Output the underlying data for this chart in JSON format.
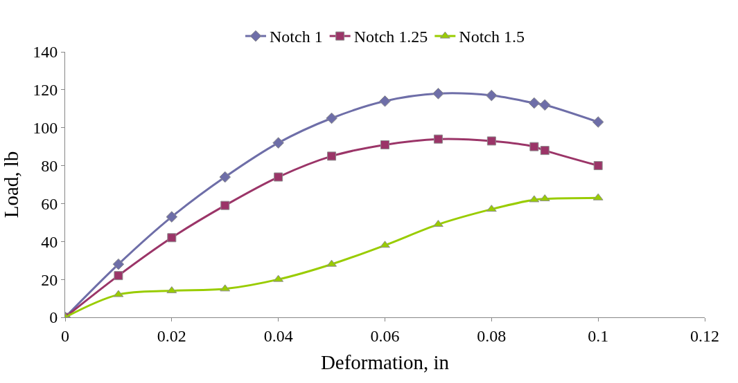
{
  "chart_data": {
    "type": "line",
    "xlabel": "Deformation, in",
    "ylabel": "Load, lb",
    "x": [
      0,
      0.01,
      0.02,
      0.03,
      0.04,
      0.05,
      0.06,
      0.07,
      0.08,
      0.088,
      0.09,
      0.1
    ],
    "series": [
      {
        "name": "Notch 1",
        "color": "#6e6ea8",
        "marker": "diamond",
        "values": [
          0,
          28,
          53,
          74,
          92,
          105,
          114,
          118,
          117,
          113,
          112,
          103
        ]
      },
      {
        "name": "Notch 1.25",
        "color": "#9b3568",
        "marker": "square",
        "values": [
          0,
          22,
          42,
          59,
          74,
          85,
          91,
          94,
          93,
          90,
          88,
          80
        ]
      },
      {
        "name": "Notch 1.5",
        "color": "#99cc00",
        "marker": "triangle",
        "values": [
          0,
          12,
          14,
          15,
          20,
          28,
          38,
          49,
          57,
          62,
          62.5,
          63
        ]
      }
    ],
    "xlim": [
      0,
      0.12
    ],
    "xticks": [
      0,
      0.02,
      0.04,
      0.06,
      0.08,
      0.1,
      0.12
    ],
    "ylim": [
      0,
      140
    ],
    "yticks": [
      0,
      20,
      40,
      60,
      80,
      100,
      120,
      140
    ],
    "grid": false,
    "legend": "top"
  }
}
